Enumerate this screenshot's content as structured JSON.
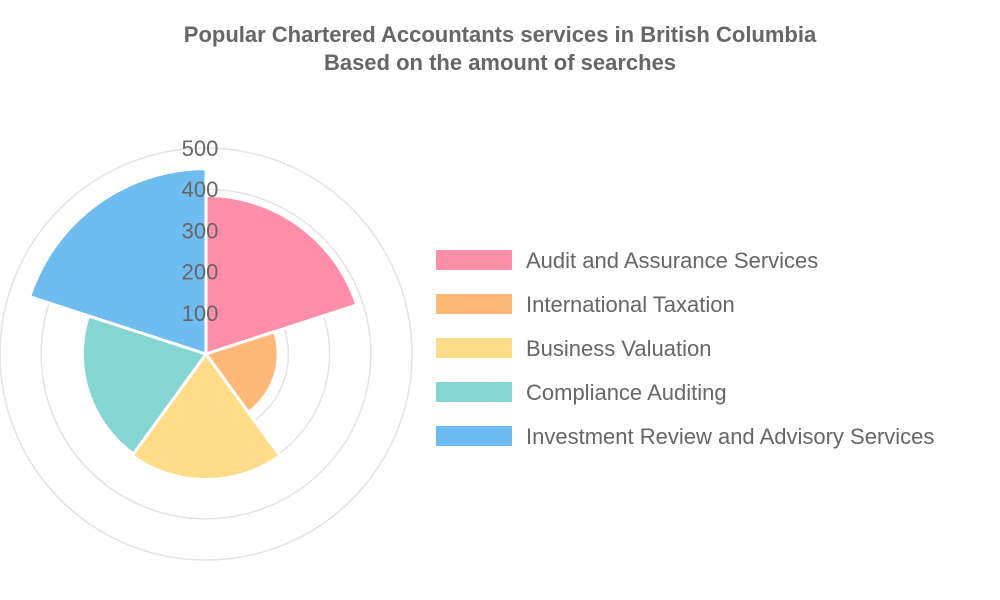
{
  "chart_data": {
    "type": "polarArea",
    "title": [
      "Popular Chartered Accountants services in British Columbia",
      "Based on the amount of searches"
    ],
    "categories": [
      "Audit and Assurance Services",
      "International Taxation",
      "Business Valuation",
      "Compliance Auditing",
      "Investment Review and Advisory Services"
    ],
    "values": [
      385,
      175,
      305,
      300,
      450
    ],
    "colors": [
      "#ff8fa8",
      "#ffb877",
      "#ffdc88",
      "#85d6d2",
      "#6fbdf0"
    ],
    "rlim": [
      0,
      500
    ],
    "ticks": [
      "100",
      "200",
      "300",
      "400",
      "500"
    ],
    "legend_position": "right"
  }
}
